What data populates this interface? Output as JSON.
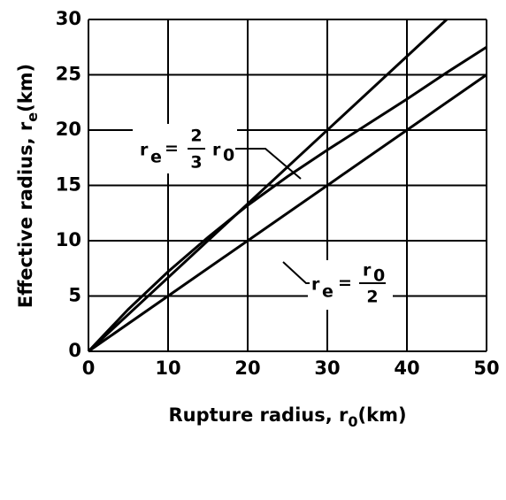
{
  "chart_data": {
    "type": "line",
    "x_label": {
      "text": "Rupture radius, r",
      "sub": "0",
      "unit": "(km)"
    },
    "y_label": {
      "text": "Effective radius, r",
      "sub": "e",
      "unit": "(km)"
    },
    "series": [
      {
        "color": "#000000",
        "x": [
          0,
          45
        ],
        "values": [
          0,
          30
        ]
      },
      {
        "color": "#000000",
        "x": [
          0,
          5,
          10,
          15,
          20,
          25,
          30,
          35,
          40,
          45,
          50
        ],
        "values": [
          0,
          3.8,
          7.2,
          10.3,
          13.2,
          15.8,
          18.2,
          20.5,
          22.8,
          25.2,
          27.5
        ]
      },
      {
        "color": "#000000",
        "x": [
          0,
          50
        ],
        "values": [
          0,
          25
        ]
      }
    ],
    "annotations": [
      {
        "lhs": "r",
        "lhs_sub": "e",
        "eq": "=",
        "num": "2",
        "den": "3",
        "rhs": "r",
        "rhs_sub": "0"
      },
      {
        "lhs": "r",
        "lhs_sub": "e",
        "eq": "=",
        "num": "r",
        "num_sub": "0",
        "den": "2"
      }
    ],
    "xlim": [
      0,
      50
    ],
    "xticks": [
      0,
      10,
      20,
      30,
      40,
      50
    ],
    "ylim": [
      0,
      30
    ],
    "yticks": [
      0,
      5,
      10,
      15,
      20,
      25,
      30
    ],
    "grid": true
  }
}
